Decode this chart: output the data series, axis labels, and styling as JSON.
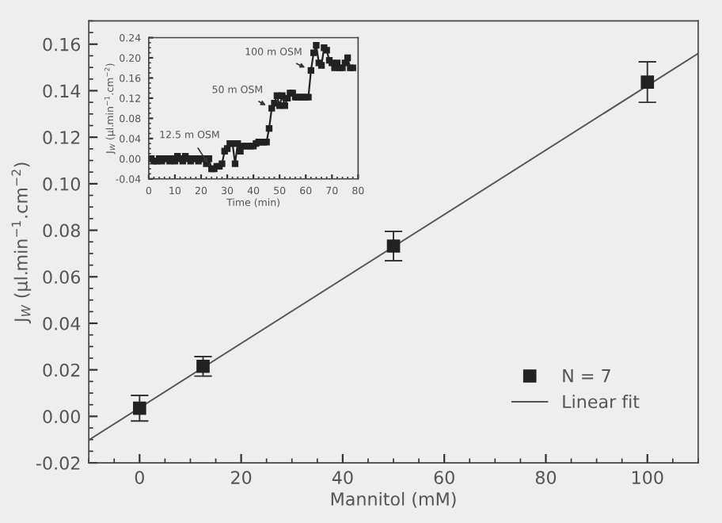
{
  "chart_data": [
    {
      "type": "scatter",
      "xlabel": "Mannitol (mM)",
      "ylabel": "J$_{W}$ (μl.min$^{−1}$.cm$^{−2}$)",
      "xlim": [
        -10,
        110
      ],
      "xticks": [
        0,
        20,
        40,
        60,
        80,
        100
      ],
      "ylim": [
        -0.02,
        0.17
      ],
      "yticks": [
        {
          "value": -0.02,
          "label": "-0.02"
        },
        {
          "value": 0,
          "label": "0.00"
        },
        {
          "value": 0.02,
          "label": "0.02"
        },
        {
          "value": 0.04,
          "label": "0.04"
        },
        {
          "value": 0.06,
          "label": "0.06"
        },
        {
          "value": 0.08,
          "label": "0.08"
        },
        {
          "value": 0.1,
          "label": "0.10"
        },
        {
          "value": 0.12,
          "label": "0.12"
        },
        {
          "value": 0.14,
          "label": "0.14"
        },
        {
          "value": 0.16,
          "label": "0.16"
        }
      ],
      "legend": "bottom right",
      "marker": "square",
      "grid": false,
      "series": [
        {
          "name": "N = 7",
          "color": "#222222",
          "x": [
            0,
            12.5,
            50,
            100
          ],
          "values": [
            0.0035,
            0.0215,
            0.0732,
            0.1437
          ],
          "errors": [
            0.0055,
            0.0042,
            0.0063,
            0.0087
          ]
        },
        {
          "name": "Linear fit",
          "type": "line",
          "marker": "none",
          "color": "#555555",
          "x": [
            -10,
            110
          ],
          "values": [
            -0.0102,
            0.156
          ]
        }
      ]
    },
    {
      "type": "line",
      "xlabel": "Time (min)",
      "ylabel": "J$_{W}$ (μl.min$^{−1}$.cm$^{−2}$)",
      "xlim": [
        0,
        80
      ],
      "xticks": [
        0,
        10,
        20,
        30,
        40,
        50,
        60,
        70,
        80
      ],
      "ylim": [
        -0.04,
        0.24
      ],
      "yticks": [
        {
          "value": -0.04,
          "label": "-0.04"
        },
        {
          "value": 0,
          "label": "0.00"
        },
        {
          "value": 0.04,
          "label": "0.04"
        },
        {
          "value": 0.08,
          "label": "0.08"
        },
        {
          "value": 0.12,
          "label": "0.12"
        },
        {
          "value": 0.16,
          "label": "0.16"
        },
        {
          "value": 0.2,
          "label": "0.20"
        },
        {
          "value": 0.24,
          "label": "0.24"
        }
      ],
      "marker": "square",
      "grid": false,
      "annotations": [
        {
          "text": "12.5 m OSM",
          "x": 24,
          "y": -0.02
        },
        {
          "text": "50 m OSM",
          "x": 47,
          "y": 0.1
        },
        {
          "text": "100 m OSM",
          "x": 62,
          "y": 0.175
        }
      ],
      "series": [
        {
          "color": "#222222",
          "x": [
            0,
            1,
            2,
            3,
            4,
            5,
            6,
            7,
            8,
            9,
            10,
            11,
            12,
            13,
            14,
            15,
            16,
            17,
            18,
            19,
            20,
            21,
            22,
            23,
            24,
            25,
            26,
            27,
            28,
            29,
            30,
            31,
            32,
            33,
            34,
            35,
            36,
            37,
            38,
            39,
            40,
            41,
            42,
            43,
            44,
            45,
            46,
            47,
            48,
            49,
            50,
            51,
            52,
            53,
            54,
            55,
            56,
            57,
            58,
            59,
            60,
            61,
            62,
            63,
            64,
            65,
            66,
            67,
            68,
            69,
            70,
            71,
            72,
            73,
            74,
            75,
            76,
            77,
            78
          ],
          "values": [
            0.0,
            0.0,
            -0.005,
            -0.005,
            0.0,
            -0.005,
            0.0,
            0.0,
            -0.005,
            0.0,
            -0.005,
            0.005,
            0.0,
            -0.005,
            0.005,
            0.0,
            -0.005,
            0.0,
            0.0,
            -0.005,
            0.0,
            0.0,
            -0.01,
            0.0,
            -0.02,
            -0.02,
            -0.015,
            -0.015,
            -0.01,
            0.015,
            0.02,
            0.03,
            0.03,
            -0.01,
            0.03,
            0.015,
            0.025,
            0.025,
            0.025,
            0.025,
            0.025,
            0.03,
            0.033,
            0.033,
            0.033,
            0.033,
            0.06,
            0.1,
            0.11,
            0.125,
            0.105,
            0.125,
            0.105,
            0.12,
            0.13,
            0.13,
            0.122,
            0.122,
            0.122,
            0.122,
            0.122,
            0.122,
            0.175,
            0.21,
            0.225,
            0.19,
            0.185,
            0.22,
            0.215,
            0.195,
            0.19,
            0.18,
            0.19,
            0.18,
            0.18,
            0.19,
            0.2,
            0.18,
            0.18
          ]
        }
      ]
    }
  ]
}
